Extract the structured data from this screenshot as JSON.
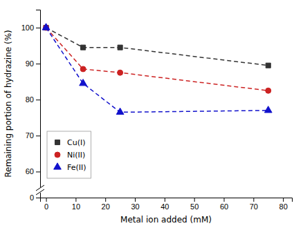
{
  "chart_data": {
    "type": "line",
    "xlabel": "Metal ion added (mM)",
    "ylabel": "Remaining portion of hydrazine (%)",
    "xlim": [
      -2,
      83
    ],
    "ylim": [
      0,
      105
    ],
    "xticks": [
      0,
      10,
      20,
      30,
      40,
      50,
      60,
      70,
      80
    ],
    "yticks": [
      0,
      60,
      70,
      80,
      90,
      100
    ],
    "legend": "lower left",
    "x": [
      0,
      12.5,
      25,
      75
    ],
    "series": [
      {
        "name": "Cu(I)",
        "color": "#333333",
        "marker": "square",
        "line_style": "dashed",
        "values": [
          100,
          94.5,
          94.5,
          89.5
        ]
      },
      {
        "name": "Ni(II)",
        "color": "#cc2222",
        "marker": "circle",
        "line_style": "dashed",
        "values": [
          100,
          88.5,
          87.5,
          82.5
        ]
      },
      {
        "name": "Fe(II)",
        "color": "#1111cc",
        "marker": "triangle",
        "line_style": "dashed",
        "values": [
          100,
          84.5,
          76.5,
          77.0
        ]
      }
    ]
  }
}
